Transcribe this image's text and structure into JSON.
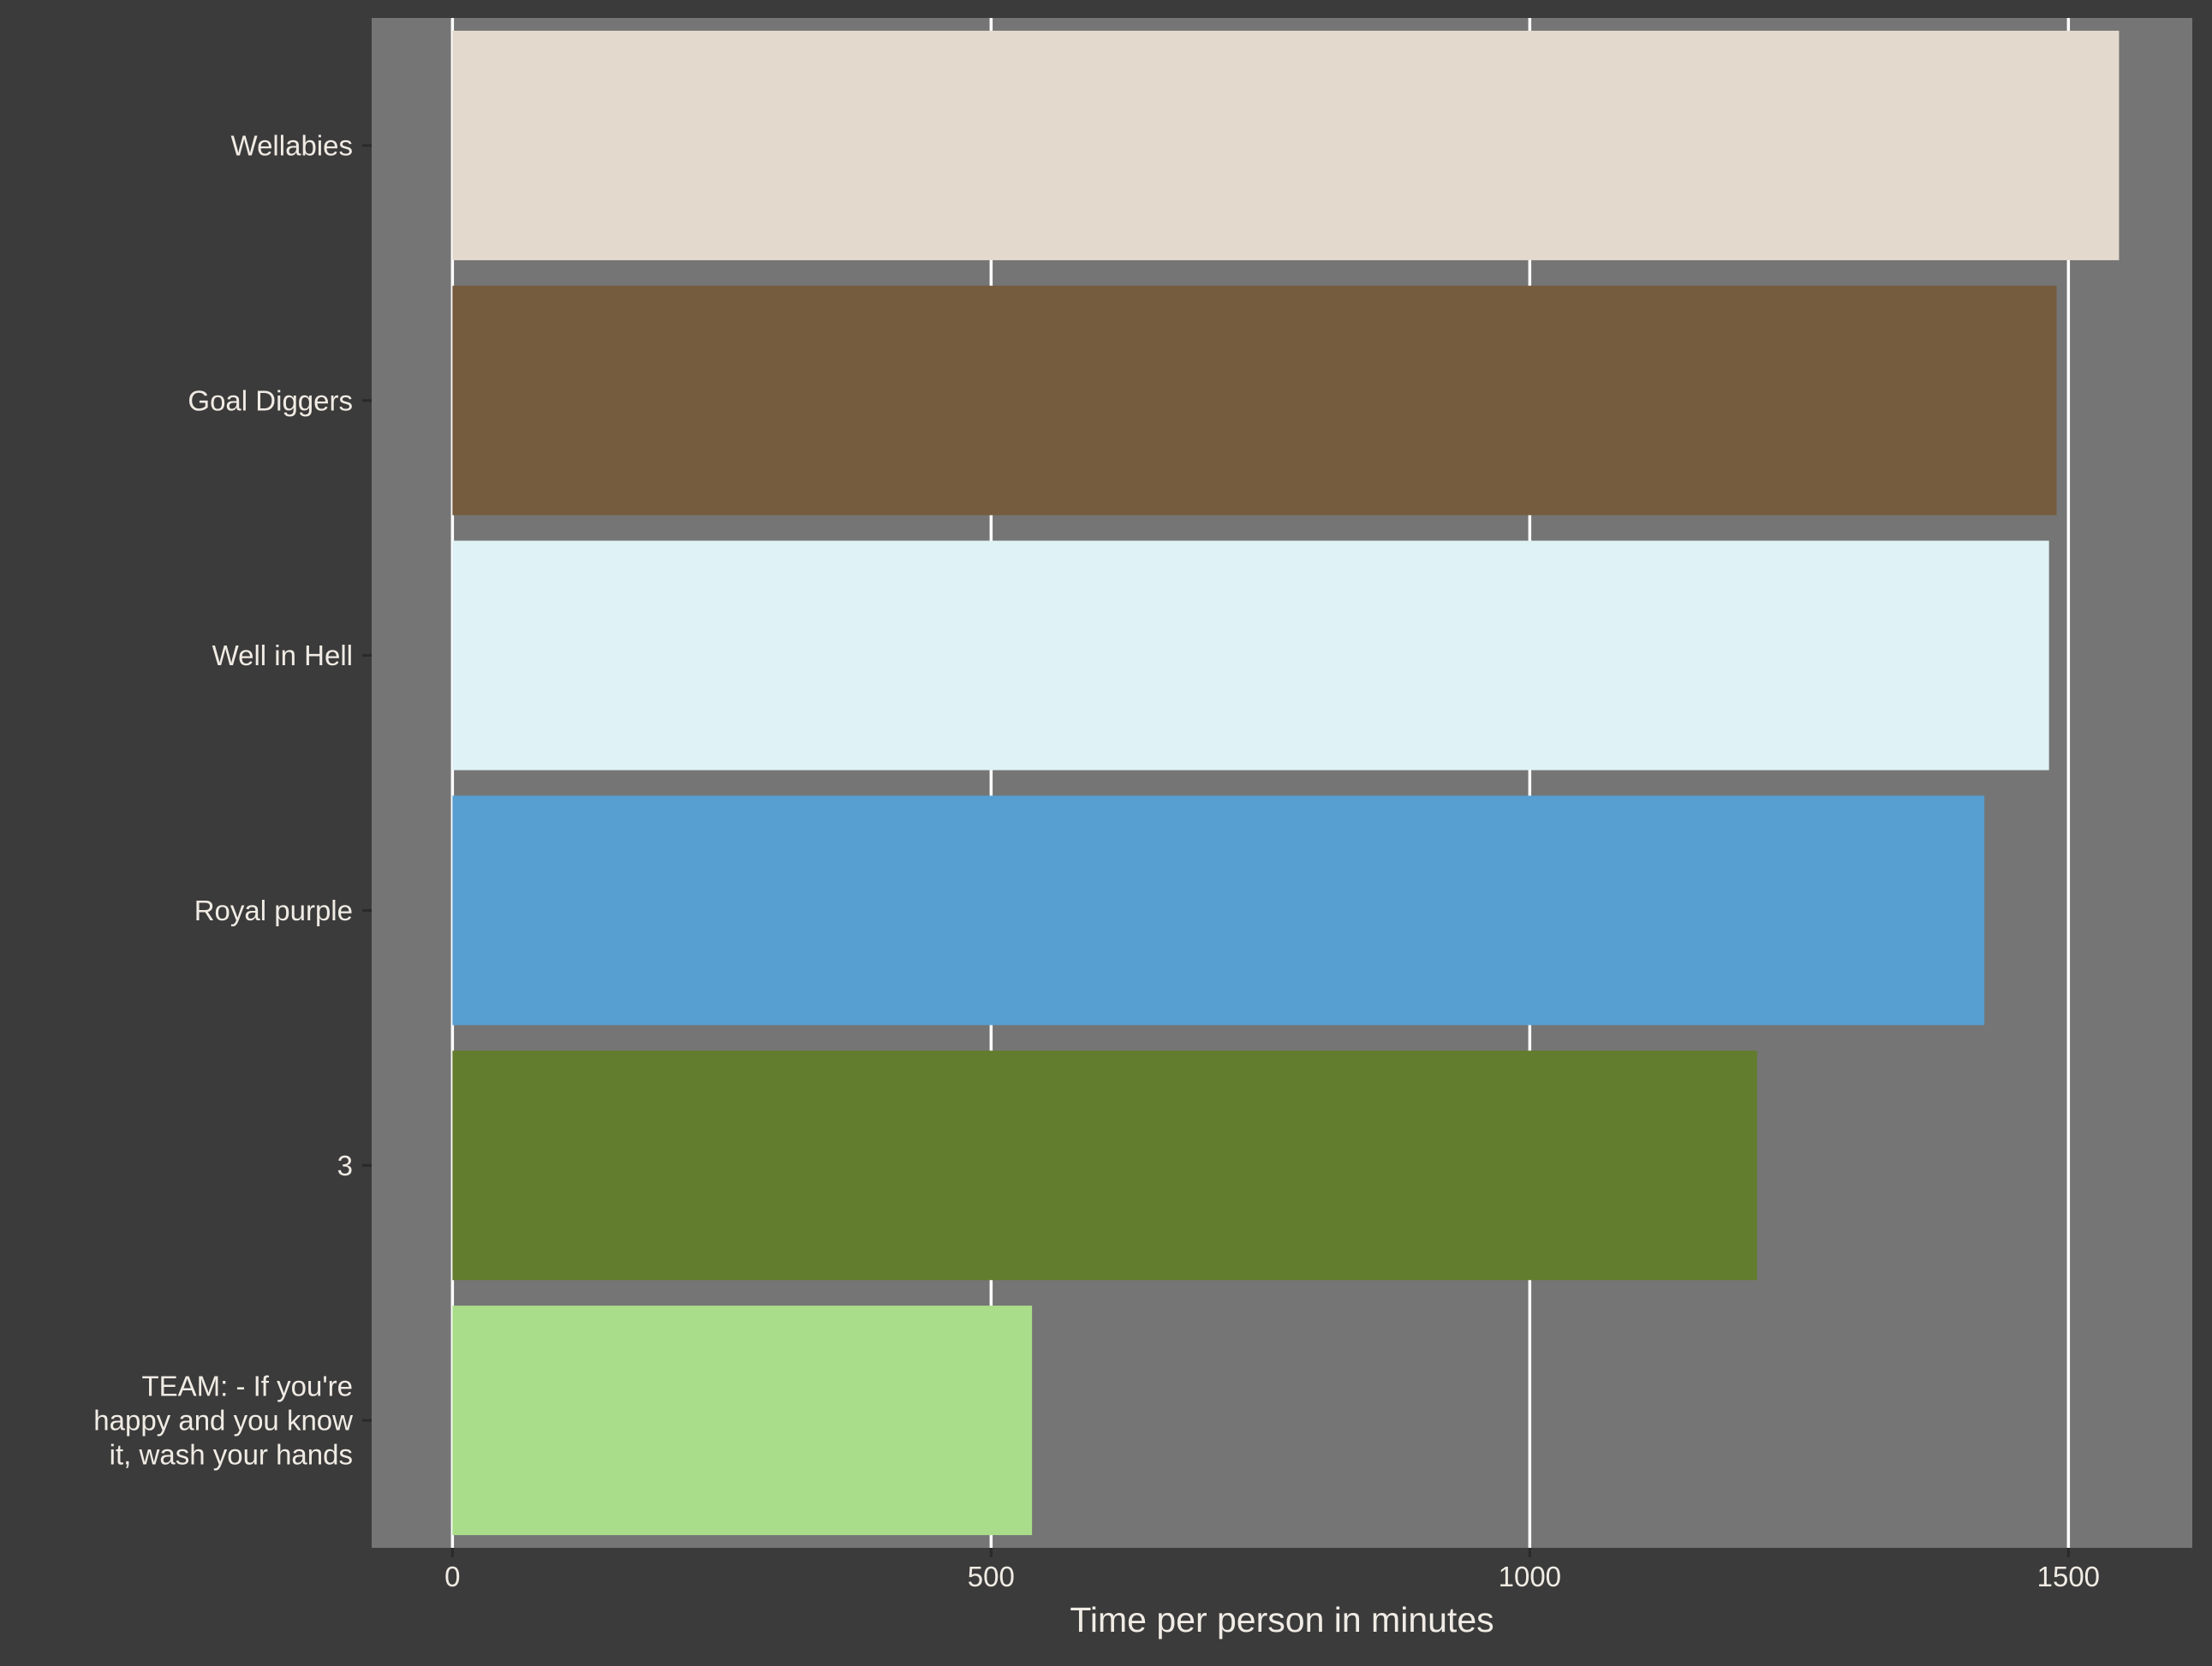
{
  "chart_data": {
    "type": "bar",
    "orientation": "horizontal",
    "title": "",
    "xlabel": "Time per person in minutes",
    "ylabel": "",
    "categories": [
      [
        "Wellabies"
      ],
      [
        "Goal Diggers"
      ],
      [
        "Well in Hell"
      ],
      [
        "Royal purple"
      ],
      [
        "3"
      ],
      [
        "TEAM: - If you're",
        "happy and you know",
        "it, wash your hands"
      ]
    ],
    "values": [
      1547,
      1489,
      1482,
      1422,
      1211,
      538
    ],
    "bar_colors": [
      "#e3dacd",
      "#755c3f",
      "#dff2f6",
      "#579fd1",
      "#637d2e",
      "#a9dd8a"
    ],
    "xlim": [
      -75,
      1615
    ],
    "xticks": [
      0,
      500,
      1000,
      1500
    ],
    "xtick_labels": [
      "0",
      "500",
      "1000",
      "1500"
    ],
    "grid": true,
    "legend": "none",
    "colors": {
      "background": "#3b3b3b",
      "panel": "#757575",
      "grid": "#ffffff",
      "text": "#f0ebe4",
      "axis_ticks": "#2a2a2a"
    }
  }
}
